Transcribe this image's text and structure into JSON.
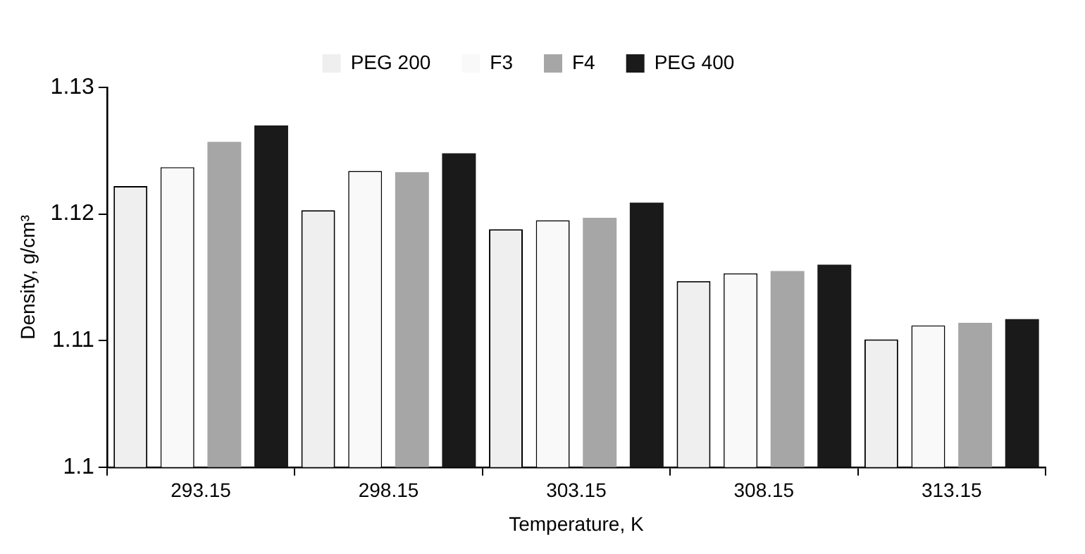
{
  "chart_data": {
    "type": "bar",
    "xlabel": "Temperature, K",
    "ylabel": "Density, g/cm³",
    "categories": [
      "293.15",
      "298.15",
      "303.15",
      "308.15",
      "313.15"
    ],
    "series": [
      {
        "name": "PEG 200",
        "color": "#efefef",
        "values": [
          1.1222,
          1.1203,
          1.1188,
          1.1147,
          1.1101
        ]
      },
      {
        "name": "F3",
        "color": "#f9f9f9",
        "values": [
          1.1237,
          1.1234,
          1.1195,
          1.1153,
          1.1112
        ]
      },
      {
        "name": "F4",
        "color": "#a6a6a6",
        "values": [
          1.1257,
          1.1233,
          1.1197,
          1.1155,
          1.1114
        ]
      },
      {
        "name": "PEG 400",
        "color": "#1a1a1a",
        "values": [
          1.127,
          1.1248,
          1.1209,
          1.116,
          1.1117
        ]
      }
    ],
    "ylim": [
      1.1,
      1.13
    ],
    "yticks": [
      1.1,
      1.11,
      1.12,
      1.13
    ],
    "grid": false,
    "legend": "top"
  }
}
